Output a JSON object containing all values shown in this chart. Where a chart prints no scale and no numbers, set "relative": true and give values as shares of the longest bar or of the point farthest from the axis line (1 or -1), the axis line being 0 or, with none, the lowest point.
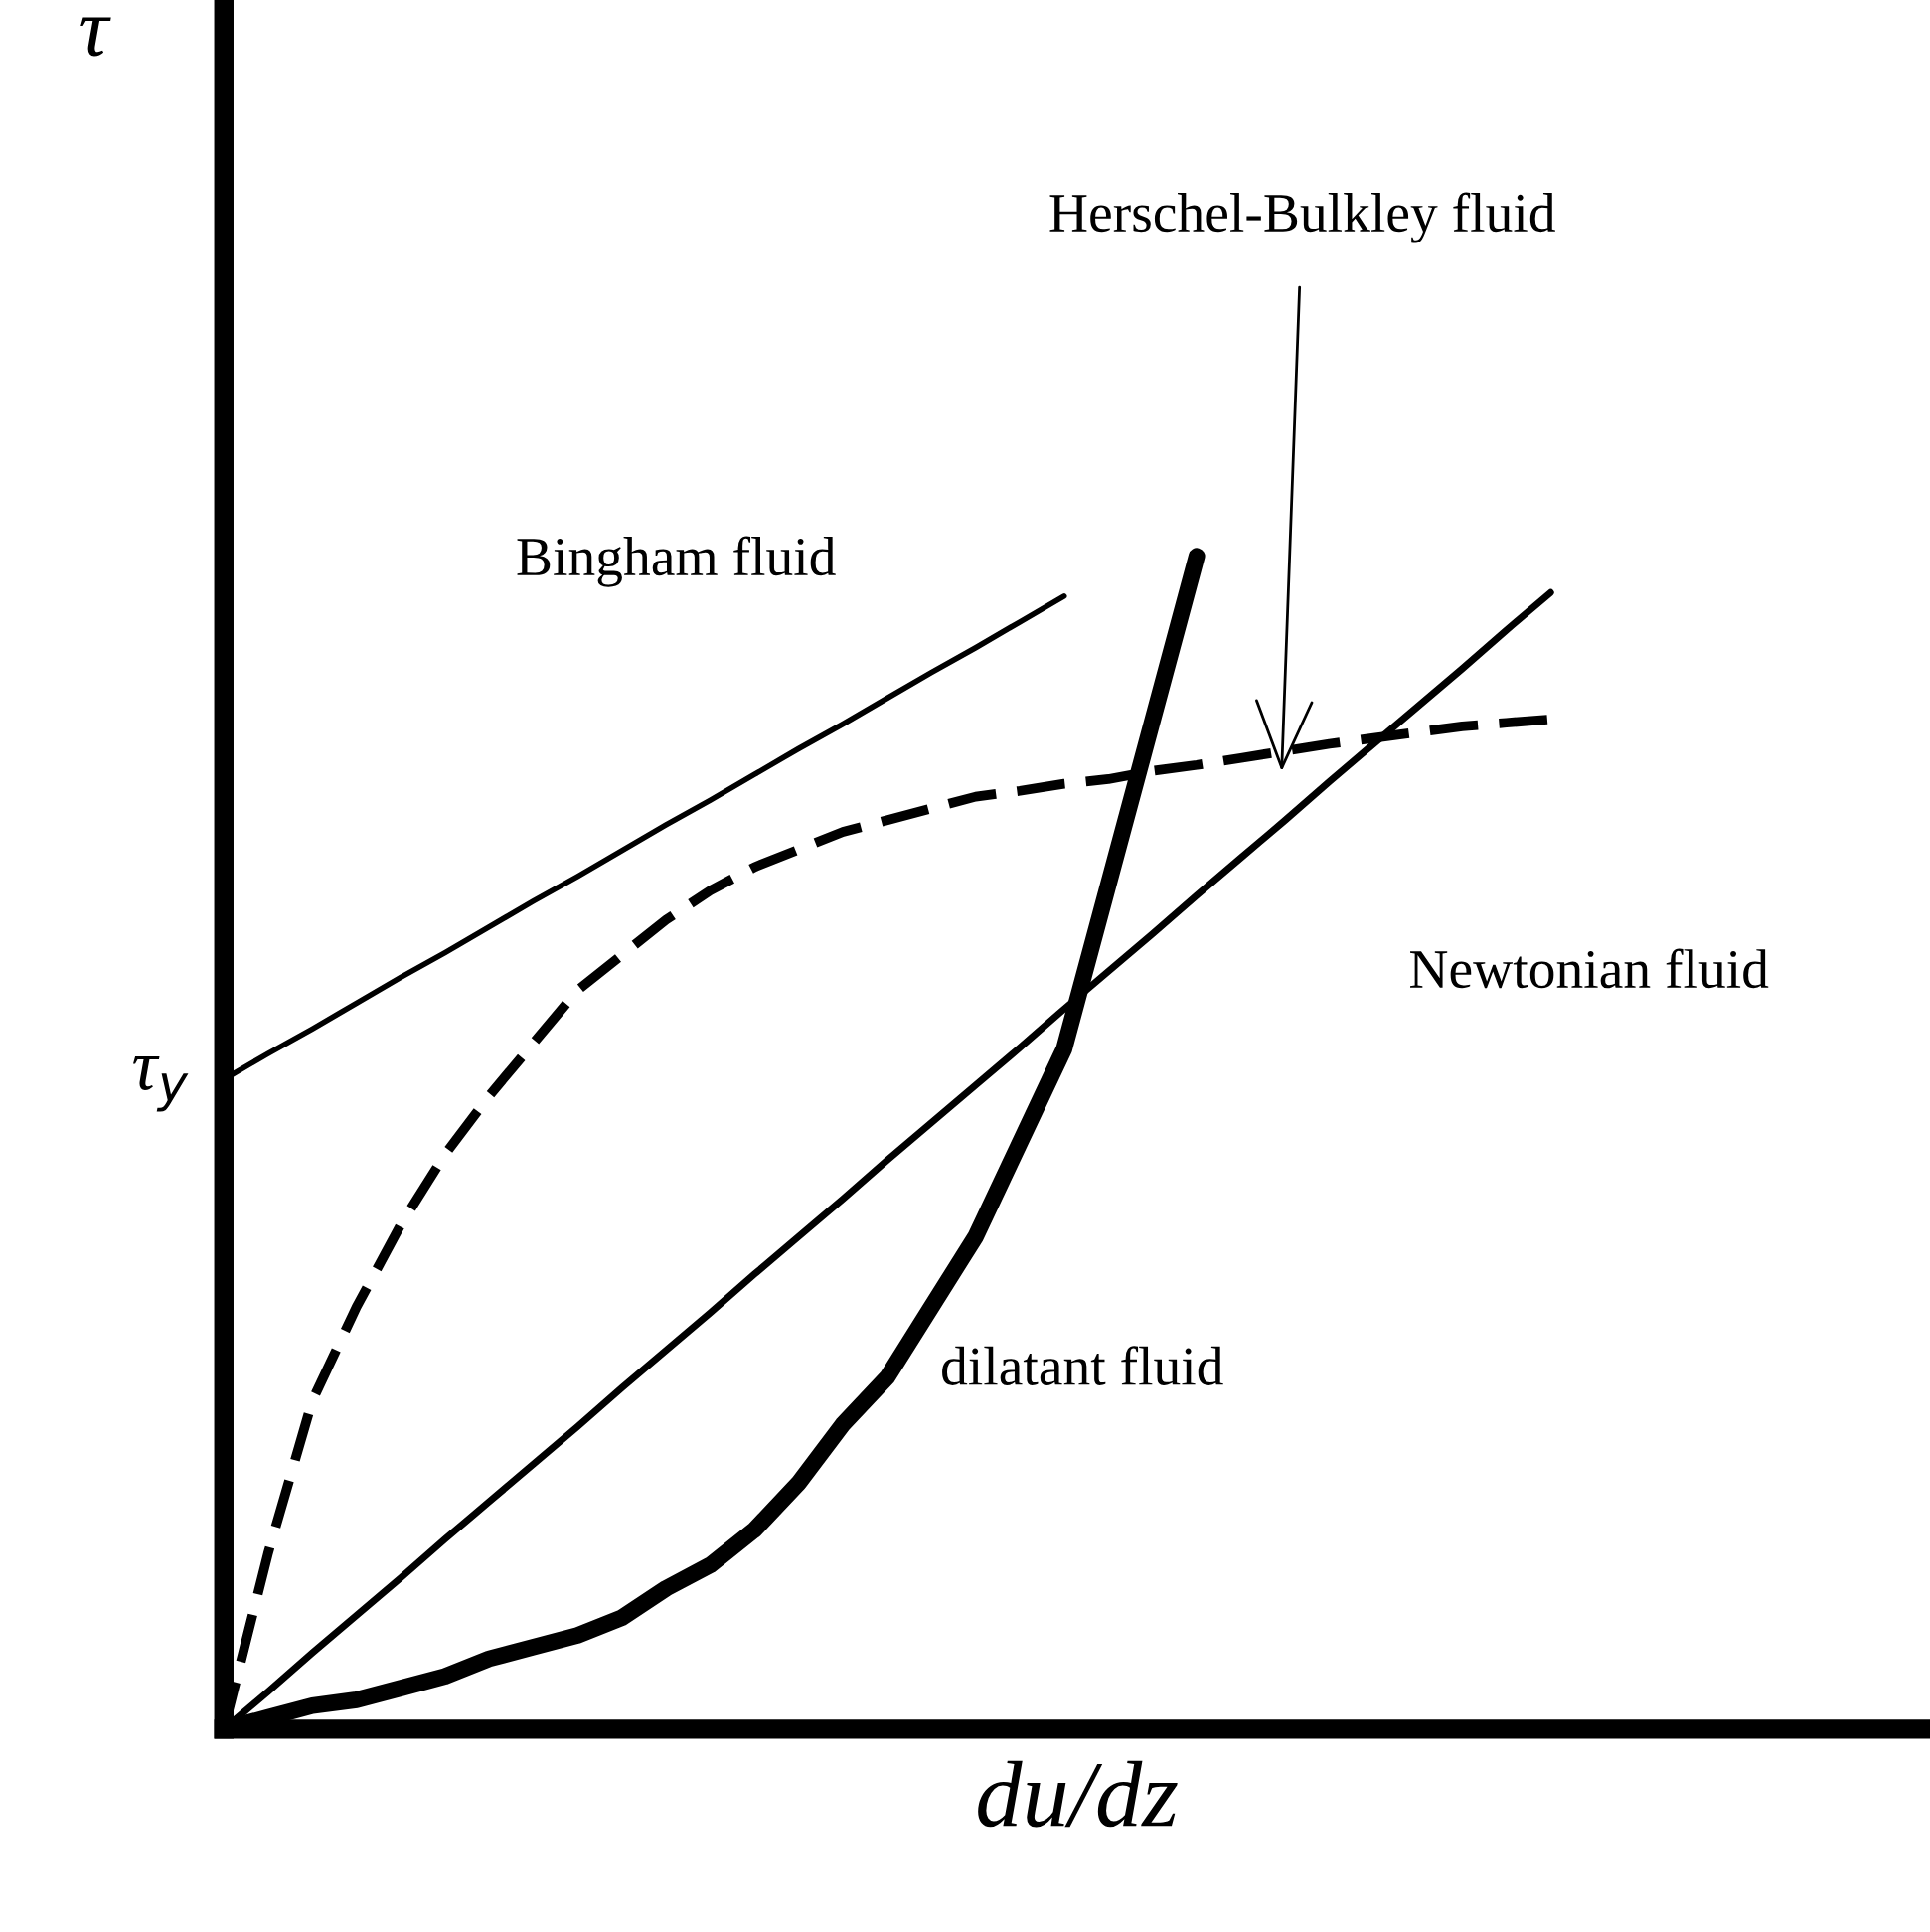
{
  "chart_data": {
    "type": "line",
    "relative": true,
    "xlabel": "du/dz",
    "grid": false,
    "marker": "none",
    "categories": [
      null,
      null,
      null,
      null,
      null,
      null,
      null,
      null,
      null,
      null,
      null,
      null,
      null,
      null,
      null,
      null,
      null,
      null,
      null,
      null,
      null,
      null,
      null,
      null,
      null,
      null,
      null,
      null,
      null,
      null,
      null
    ],
    "series": [
      {
        "color": "#000000",
        "line_style": "solid",
        "values": [
          0,
          0.032,
          0.065,
          0.097,
          0.129,
          0.162,
          0.194,
          0.226,
          0.258,
          0.291,
          0.323,
          0.355,
          0.388,
          0.42,
          0.452,
          0.485,
          0.517,
          0.549,
          0.581,
          0.614,
          0.646,
          0.678,
          0.711,
          0.743,
          0.775,
          0.808,
          0.84,
          0.872,
          0.904,
          0.937,
          0.969
        ]
      },
      {
        "color": "#000000",
        "line_style": "solid",
        "values": [
          0.554,
          0.576,
          0.597,
          0.619,
          0.641,
          0.662,
          0.684,
          0.706,
          0.727,
          0.749,
          0.771,
          0.792,
          0.814,
          0.836,
          0.857,
          0.879,
          0.901,
          0.922,
          0.944,
          0.966,
          null,
          null,
          null,
          null,
          null,
          null,
          null,
          null,
          null,
          null,
          null
        ]
      },
      {
        "color": "#000000",
        "line_style": "solid",
        "values": [
          0,
          0.01,
          0.02,
          0.025,
          0.035,
          0.045,
          0.06,
          0.07,
          0.08,
          0.095,
          0.12,
          0.14,
          0.17,
          0.21,
          0.26,
          0.3,
          0.36,
          0.42,
          0.5,
          0.58,
          0.72,
          0.86,
          1.0,
          null,
          null,
          null,
          null,
          null,
          null,
          null,
          null
        ]
      },
      {
        "color": "#000000",
        "line_style": "dashed",
        "values": [
          0,
          0.15,
          0.28,
          0.36,
          0.43,
          0.49,
          0.54,
          0.585,
          0.63,
          0.66,
          0.69,
          0.715,
          0.735,
          0.75,
          0.765,
          0.775,
          0.785,
          0.795,
          0.8,
          0.806,
          0.81,
          0.817,
          0.822,
          0.828,
          0.834,
          0.84,
          0.845,
          0.85,
          0.855,
          0.858,
          0.861
        ]
      }
    ],
    "annotations": [
      "Herschel-Bulkley fluid",
      "Bingham fluid",
      "Newtonian fluid",
      "dilatant fluid",
      "τ$_{y}$",
      "τ"
    ]
  }
}
